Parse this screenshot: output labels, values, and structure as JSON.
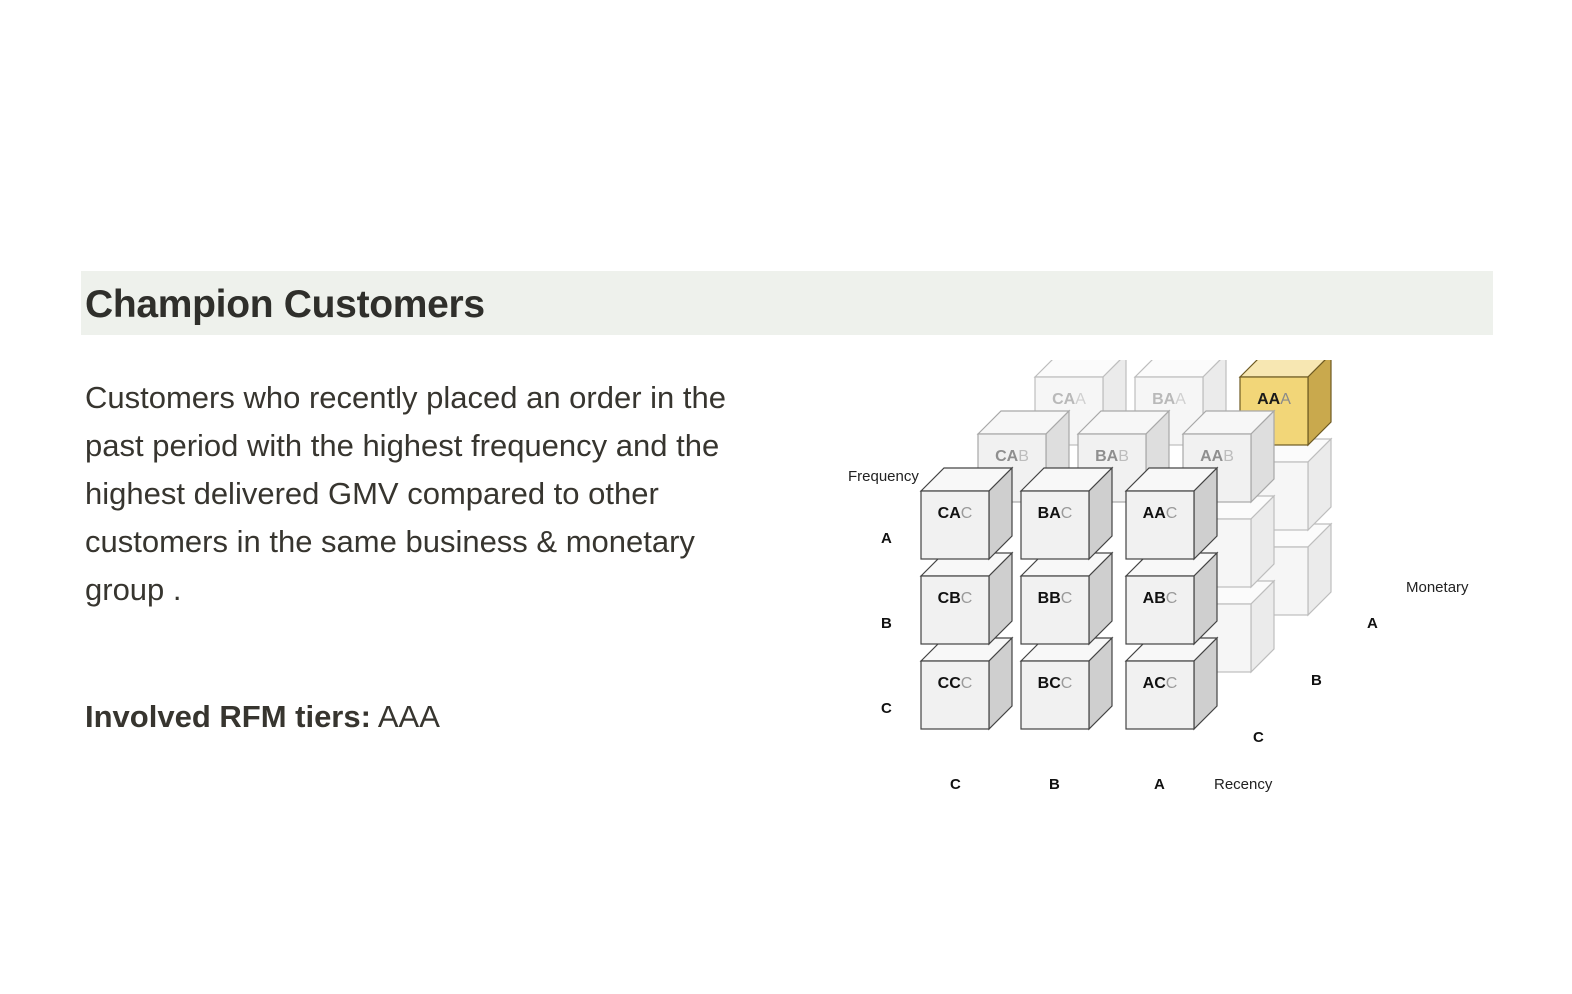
{
  "heading": "Champion Customers",
  "description": "Customers who recently placed an order in the past period with the highest frequency and the highest delivered GMV compared to other customers in the same business & monetary group .",
  "tiers": {
    "label": "Involved RFM tiers:",
    "value": "AAA"
  },
  "diagram": {
    "axes": {
      "frequency": "Frequency",
      "recency": "Recency",
      "monetary": "Monetary"
    },
    "highlighted_cube": "AAA",
    "highlight_color": "#f2d678",
    "back_layer": [
      "CAA",
      "BAA",
      "AAA"
    ],
    "middle_layer": [
      "CAB",
      "BAB",
      "AAB"
    ],
    "front_grid": [
      [
        "CAC",
        "BAC",
        "AAC"
      ],
      [
        "CBC",
        "BBC",
        "ABC"
      ],
      [
        "CCC",
        "BCC",
        "ACC"
      ]
    ],
    "frequency_ticks": [
      "A",
      "B",
      "C"
    ],
    "recency_ticks": [
      "C",
      "B",
      "A"
    ],
    "monetary_ticks": [
      "A",
      "B",
      "C"
    ]
  }
}
